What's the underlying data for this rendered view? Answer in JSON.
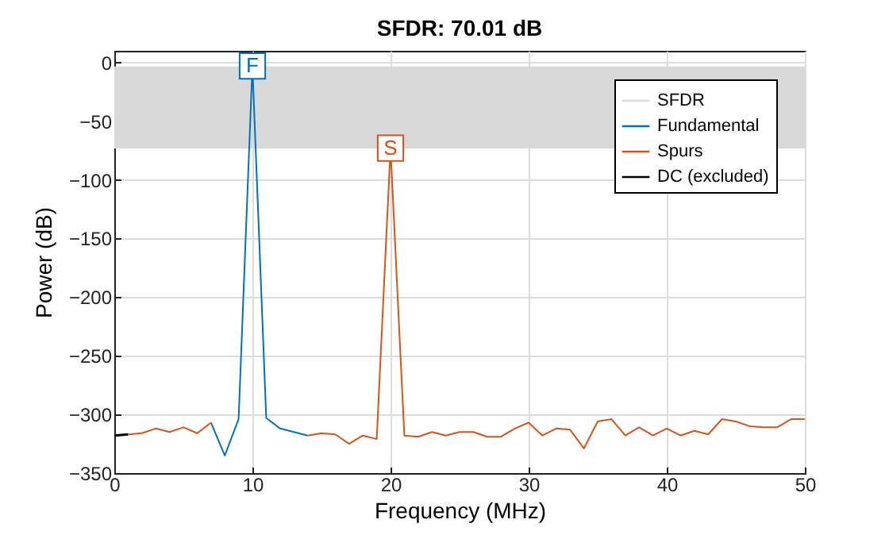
{
  "chart_data": {
    "type": "line",
    "title": "SFDR:  70.01 dB",
    "xlabel": "Frequency (MHz)",
    "ylabel": "Power (dB)",
    "xlim": [
      0,
      50
    ],
    "xticks": [
      0,
      10,
      20,
      30,
      40,
      50
    ],
    "ylim": [
      -350,
      10
    ],
    "yticks": [
      -350,
      -300,
      -250,
      -200,
      -150,
      -100,
      -50,
      0
    ],
    "grid": true,
    "legend": "top right",
    "bands": [
      {
        "axis": "y",
        "from": -73.3,
        "to": -3.3,
        "label": "SFDR",
        "color": "#d9d9d9"
      }
    ],
    "series": [
      {
        "name": "Fundamental",
        "color": "#0072bd",
        "x": [
          7,
          8,
          9,
          10,
          11,
          12,
          13,
          14
        ],
        "values": [
          -307,
          -335,
          -304,
          -3,
          -303,
          -312,
          -315,
          -318
        ]
      },
      {
        "name": "Spurs",
        "color": "#d95319",
        "x": [
          1,
          2,
          3,
          4,
          5,
          6,
          7,
          8,
          9,
          10,
          11,
          12,
          13,
          14,
          15,
          16,
          17,
          18,
          19,
          20,
          21,
          22,
          23,
          24,
          25,
          26,
          27,
          28,
          29,
          30,
          31,
          32,
          33,
          34,
          35,
          36,
          37,
          38,
          39,
          40,
          41,
          42,
          43,
          44,
          45,
          46,
          47,
          48,
          49,
          50
        ],
        "values": [
          -317,
          -316,
          -312,
          -315,
          -311,
          -316,
          -307,
          null,
          null,
          null,
          null,
          null,
          null,
          -318,
          -316,
          -317,
          -325,
          -318,
          -321,
          -73,
          -318,
          -319,
          -315,
          -318,
          -315,
          -315,
          -319,
          -319,
          -312,
          -307,
          -318,
          -312,
          -313,
          -329,
          -306,
          -304,
          -318,
          -311,
          -318,
          -312,
          -318,
          -314,
          -317,
          -304,
          -306,
          -310,
          -311,
          -311,
          -304,
          -304
        ]
      },
      {
        "name": "DC (excluded)",
        "color": "#000000",
        "x": [
          0,
          1
        ],
        "values": [
          -318,
          -317
        ]
      }
    ],
    "annotations": [
      {
        "text": "F",
        "x": 10,
        "y": -3
      },
      {
        "text": "S",
        "x": 20,
        "y": -73
      }
    ]
  }
}
